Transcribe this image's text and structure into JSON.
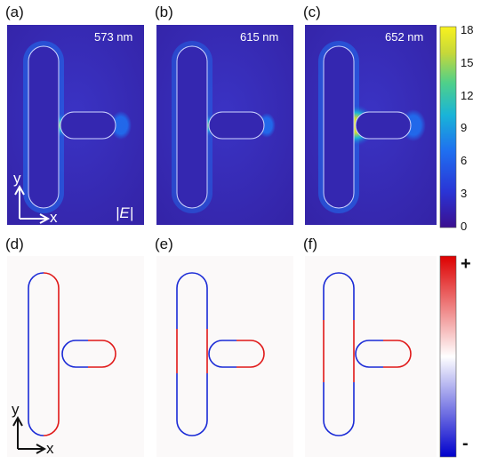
{
  "top_row": {
    "panels": [
      {
        "label": "(a)",
        "wavelength": "573 nm",
        "gap_hotspot": 0.55
      },
      {
        "label": "(b)",
        "wavelength": "615 nm",
        "gap_hotspot": 0.7
      },
      {
        "label": "(c)",
        "wavelength": "652 nm",
        "gap_hotspot": 1.0
      }
    ],
    "field_label": "|E|",
    "colorbar": {
      "ticks": [
        "18",
        "15",
        "12",
        "9",
        "6",
        "3",
        "0"
      ],
      "colors": [
        "#3b0f8f",
        "#2a35d6",
        "#1f6ff0",
        "#19b4d8",
        "#4fd08a",
        "#c6d83a",
        "#f9f21e"
      ]
    }
  },
  "bottom_row": {
    "panels": [
      {
        "label": "(d)"
      },
      {
        "label": "(e)"
      },
      {
        "label": "(f)"
      }
    ],
    "colorbar": {
      "plus": "+",
      "minus": "-",
      "colors": [
        "#0000cc",
        "#ffffff",
        "#dd0000"
      ]
    }
  },
  "axes": {
    "x": "x",
    "y": "y"
  }
}
